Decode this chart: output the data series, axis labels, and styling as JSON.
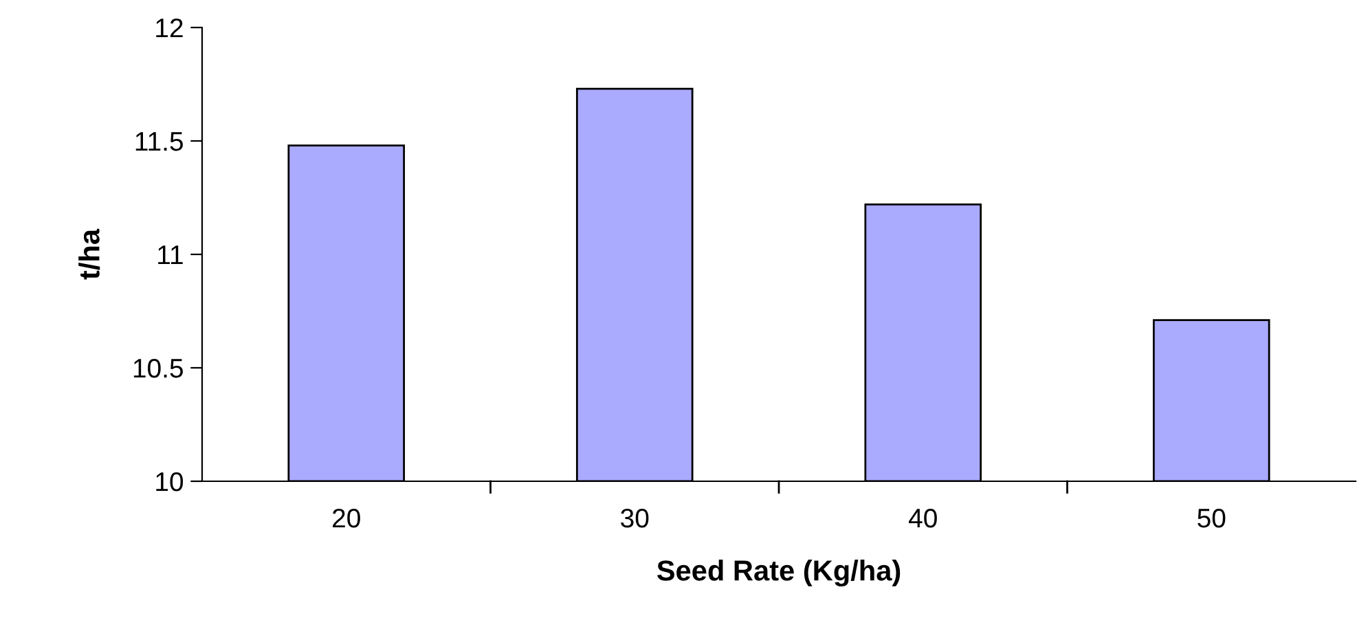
{
  "chart_data": {
    "type": "bar",
    "xlabel": "Seed Rate (Kg/ha)",
    "ylabel": "t/ha",
    "categories": [
      "20",
      "30",
      "40",
      "50"
    ],
    "values": [
      11.48,
      11.73,
      11.22,
      10.71
    ],
    "color": "#aaaaff",
    "ylim": [
      10,
      12
    ],
    "yticks": [
      10,
      10.5,
      11,
      11.5,
      12
    ],
    "grid": false,
    "legend": false
  }
}
